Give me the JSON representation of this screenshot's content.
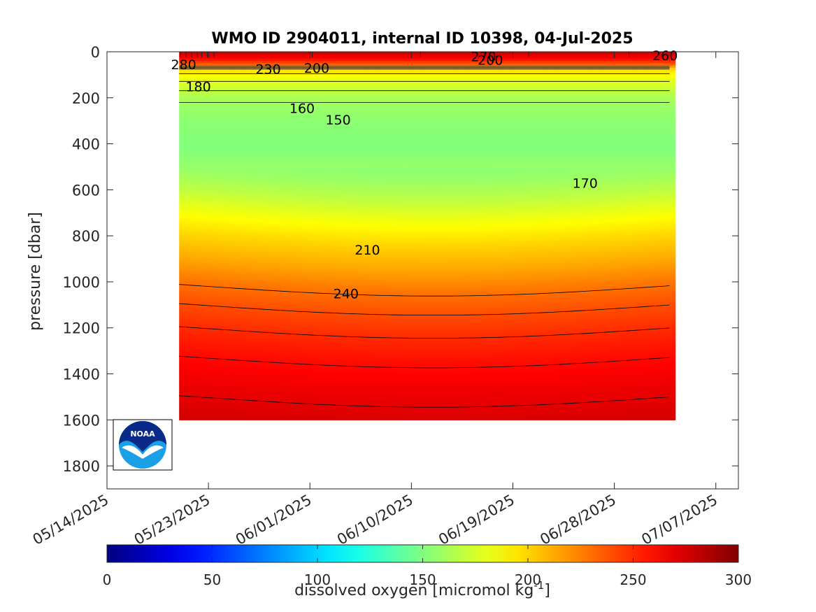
{
  "chart_data": {
    "type": "heatmap",
    "title": "WMO ID 2904011, internal ID 10398, 04-Jul-2025",
    "ylabel": "pressure [dbar]",
    "xlabel": "",
    "colorbar_label": "dissolved oxygen [micromol kg",
    "colorbar_label_exponent": "-1",
    "colorbar_label_close": "]",
    "x_ticks": [
      "05/14/2025",
      "05/23/2025",
      "06/01/2025",
      "06/10/2025",
      "06/19/2025",
      "06/28/2025",
      "07/07/2025"
    ],
    "x_tick_days": [
      0,
      9,
      18,
      27,
      36,
      45,
      54
    ],
    "xlim_days": [
      0,
      56
    ],
    "y_ticks": [
      0,
      200,
      400,
      600,
      800,
      1000,
      1200,
      1400,
      1600,
      1800
    ],
    "ylim": [
      0,
      1900
    ],
    "y_reversed": true,
    "colorbar_ticks": [
      0,
      50,
      100,
      150,
      200,
      250,
      300
    ],
    "colorbar_range": [
      0,
      300
    ],
    "colormap": "jet",
    "profile_days": [
      6.5,
      7.0,
      7.5,
      8.0,
      8.4,
      8.9,
      9.5,
      18.2,
      27.8,
      37.4,
      46.3,
      50.0
    ],
    "data_extent": {
      "x_days": [
        6.4,
        50.0
      ],
      "max_pressure": 1595
    },
    "contour_levels": [
      150,
      160,
      170,
      180,
      190,
      200,
      210,
      220,
      230,
      240,
      250,
      260,
      270,
      280
    ],
    "contour_labels": [
      {
        "text": "280",
        "day": 6.8,
        "p": 55
      },
      {
        "text": "230",
        "day": 14.3,
        "p": 75
      },
      {
        "text": "200",
        "day": 18.6,
        "p": 70
      },
      {
        "text": "270",
        "day": 33.4,
        "p": 20
      },
      {
        "text": "200",
        "day": 34.0,
        "p": 35
      },
      {
        "text": "260",
        "day": 49.5,
        "p": 15
      },
      {
        "text": "180",
        "day": 8.1,
        "p": 150
      },
      {
        "text": "160",
        "day": 17.3,
        "p": 245
      },
      {
        "text": "150",
        "day": 20.5,
        "p": 295
      },
      {
        "text": "170",
        "day": 42.4,
        "p": 570
      },
      {
        "text": "210",
        "day": 23.1,
        "p": 860
      },
      {
        "text": "240",
        "day": 21.2,
        "p": 1050
      }
    ],
    "oxygen_profile": {
      "pressure": [
        0,
        30,
        55,
        75,
        95,
        120,
        150,
        200,
        260,
        330,
        420,
        520,
        600,
        700,
        800,
        900,
        1000,
        1100,
        1200,
        1300,
        1400,
        1500,
        1600
      ],
      "values": [
        278,
        262,
        235,
        200,
        190,
        182,
        175,
        162,
        156,
        153,
        151,
        158,
        168,
        185,
        200,
        213,
        228,
        240,
        250,
        258,
        265,
        270,
        275
      ]
    }
  },
  "logo": {
    "text": "NOAA"
  }
}
